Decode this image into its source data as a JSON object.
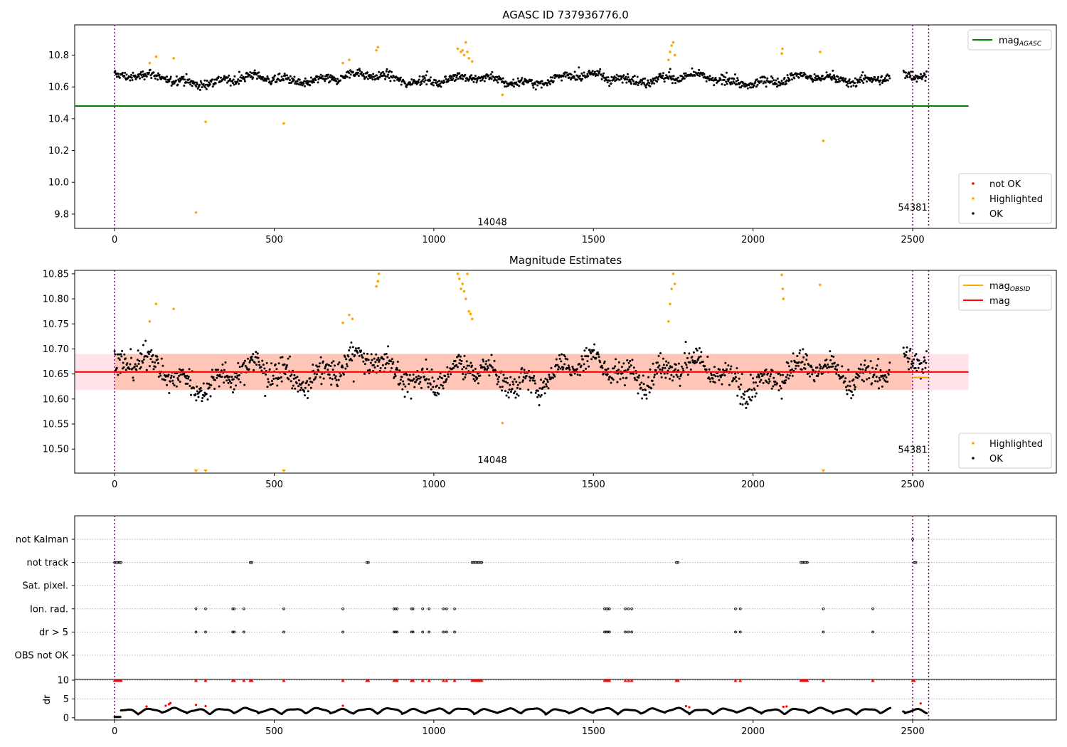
{
  "figure": {
    "title": "AGASC ID 737936776.0"
  },
  "chart_data": [
    {
      "type": "scatter",
      "title": "AGASC ID 737936776.0",
      "xlabel": "",
      "ylabel": "",
      "xlim": [
        -125,
        2950
      ],
      "ylim": [
        9.71,
        10.99
      ],
      "xticks": [
        0,
        500,
        1000,
        1500,
        2000,
        2500
      ],
      "yticks": [
        9.8,
        10.0,
        10.2,
        10.4,
        10.6,
        10.8
      ],
      "grid": false,
      "obs_lines": [
        0,
        2500,
        2550
      ],
      "obs_labels": [
        {
          "text": "14048",
          "x": 1250,
          "y": 9.74
        },
        {
          "text": "54381",
          "x": 2500,
          "y": 9.83
        }
      ],
      "hline": {
        "name": "mag_AGASC",
        "value": 10.48,
        "xmin": -125,
        "xmax": 2675,
        "color": "#008000"
      },
      "series": [
        {
          "name": "not OK",
          "color": "#ff0000",
          "values": []
        },
        {
          "name": "Highlighted",
          "color": "#ffa500",
          "points": [
            [
              110,
              10.75
            ],
            [
              130,
              10.79
            ],
            [
              185,
              10.78
            ],
            [
              255,
              9.81
            ],
            [
              285,
              10.38
            ],
            [
              530,
              10.37
            ],
            [
              715,
              10.75
            ],
            [
              735,
              10.77
            ],
            [
              820,
              10.83
            ],
            [
              825,
              10.85
            ],
            [
              1075,
              10.84
            ],
            [
              1085,
              10.82
            ],
            [
              1090,
              10.83
            ],
            [
              1095,
              10.8
            ],
            [
              1100,
              10.88
            ],
            [
              1105,
              10.82
            ],
            [
              1110,
              10.78
            ],
            [
              1120,
              10.76
            ],
            [
              1215,
              10.55
            ],
            [
              1735,
              10.77
            ],
            [
              1740,
              10.82
            ],
            [
              1745,
              10.86
            ],
            [
              1750,
              10.88
            ],
            [
              1755,
              10.8
            ],
            [
              2090,
              10.81
            ],
            [
              2092,
              10.84
            ],
            [
              2210,
              10.82
            ],
            [
              2220,
              10.26
            ]
          ]
        },
        {
          "name": "OK",
          "color": "#000000",
          "model": {
            "base": 10.65,
            "noise": 0.035
          }
        }
      ],
      "legends": [
        {
          "position": "upper right",
          "entries": [
            {
              "label": "mag",
              "sub": "AGASC",
              "kind": "line",
              "color": "#008000"
            }
          ]
        },
        {
          "position": "lower right",
          "entries": [
            {
              "label": "not OK",
              "kind": "dot",
              "color": "#ff0000"
            },
            {
              "label": "Highlighted",
              "kind": "dot",
              "color": "#ffa500"
            },
            {
              "label": "OK",
              "kind": "dot",
              "color": "#000000"
            }
          ]
        }
      ]
    },
    {
      "type": "scatter",
      "title": "Magnitude Estimates",
      "xlabel": "",
      "ylabel": "",
      "xlim": [
        -125,
        2950
      ],
      "ylim": [
        10.452,
        10.857
      ],
      "xticks": [
        0,
        500,
        1000,
        1500,
        2000,
        2500
      ],
      "yticks": [
        10.5,
        10.55,
        10.6,
        10.65,
        10.7,
        10.75,
        10.8,
        10.85
      ],
      "grid": false,
      "obs_lines": [
        0,
        2500,
        2550
      ],
      "obs_labels": [
        {
          "text": "14048",
          "x": 1250,
          "y": 10.475
        },
        {
          "text": "54381",
          "x": 2500,
          "y": 10.495
        }
      ],
      "bands": [
        {
          "color": "#ffc0cb",
          "opacity": 0.45,
          "y0": 10.618,
          "y1": 10.69,
          "xmin": -125,
          "xmax": 2675
        },
        {
          "color": "#ffa07a",
          "opacity": 0.45,
          "y0": 10.618,
          "y1": 10.69,
          "xmin": 0,
          "xmax": 2500
        }
      ],
      "mag_line": {
        "name": "mag",
        "value": 10.654,
        "color": "#ff0000"
      },
      "mag_obsid": [
        {
          "x0": 0,
          "x1": 2500,
          "value": 10.654
        },
        {
          "x0": 2500,
          "x1": 2550,
          "value": 10.643
        }
      ],
      "series": [
        {
          "name": "Highlighted",
          "color": "#ffa500",
          "points": [
            [
              110,
              10.755
            ],
            [
              130,
              10.79
            ],
            [
              185,
              10.78
            ],
            [
              715,
              10.752
            ],
            [
              735,
              10.768
            ],
            [
              745,
              10.76
            ],
            [
              820,
              10.825
            ],
            [
              825,
              10.835
            ],
            [
              828,
              10.85
            ],
            [
              1075,
              10.85
            ],
            [
              1080,
              10.84
            ],
            [
              1085,
              10.82
            ],
            [
              1090,
              10.83
            ],
            [
              1095,
              10.815
            ],
            [
              1100,
              10.8
            ],
            [
              1105,
              10.85
            ],
            [
              1110,
              10.775
            ],
            [
              1115,
              10.77
            ],
            [
              1120,
              10.76
            ],
            [
              1215,
              10.552
            ],
            [
              1735,
              10.755
            ],
            [
              1740,
              10.79
            ],
            [
              1745,
              10.82
            ],
            [
              1750,
              10.85
            ],
            [
              1755,
              10.83
            ],
            [
              2090,
              10.848
            ],
            [
              2093,
              10.82
            ],
            [
              2095,
              10.8
            ],
            [
              2210,
              10.828
            ]
          ]
        },
        {
          "name": "OK",
          "color": "#000000",
          "model": {
            "base": 10.653,
            "noise": 0.03
          }
        }
      ],
      "off_scale_markers": [
        255,
        285,
        530,
        2220
      ],
      "legends": [
        {
          "position": "upper right",
          "entries": [
            {
              "label": "mag",
              "sub": "OBSID",
              "kind": "line",
              "color": "#ffa500"
            },
            {
              "label": "mag",
              "kind": "line",
              "color": "#ff0000"
            }
          ]
        },
        {
          "position": "lower right",
          "entries": [
            {
              "label": "Highlighted",
              "kind": "dot",
              "color": "#ffa500"
            },
            {
              "label": "OK",
              "kind": "dot",
              "color": "#000000"
            }
          ]
        }
      ]
    },
    {
      "type": "scatter",
      "title": "",
      "xlabel": "",
      "ylabel": "",
      "xlim": [
        -125,
        2950
      ],
      "xticks": [
        0,
        500,
        1000,
        1500,
        2000,
        2500
      ],
      "categories": [
        "not Kalman",
        "not track",
        "Sat. pixel.",
        "Ion. rad.",
        "dr > 5",
        "OBS not OK"
      ],
      "flag_x": {
        "not Kalman": [
          2500
        ],
        "not track": [
          0,
          5,
          10,
          15,
          20,
          425,
          430,
          790,
          795,
          1120,
          1125,
          1130,
          1135,
          1140,
          1145,
          1150,
          1760,
          1765,
          2150,
          2155,
          2160,
          2165,
          2170,
          2505,
          2510
        ],
        "Sat. pixel.": [],
        "Ion. rad.": [
          255,
          285,
          370,
          375,
          405,
          530,
          715,
          875,
          880,
          885,
          930,
          935,
          965,
          985,
          1030,
          1040,
          1065,
          1535,
          1540,
          1545,
          1550,
          1600,
          1610,
          1620,
          1945,
          1960,
          2220,
          2375
        ],
        "dr > 5": [
          255,
          285,
          370,
          375,
          405,
          530,
          715,
          875,
          880,
          885,
          930,
          935,
          965,
          985,
          1030,
          1040,
          1065,
          1535,
          1540,
          1545,
          1550,
          1600,
          1610,
          1620,
          1945,
          1960,
          2220,
          2375
        ],
        "OBS not OK": []
      }
    },
    {
      "type": "scatter",
      "title": "",
      "xlabel": "",
      "ylabel": "dr",
      "xlim": [
        -125,
        2950
      ],
      "ylim": [
        -0.6,
        10.2
      ],
      "yticks": [
        0,
        5,
        10
      ],
      "xticks": [
        0,
        500,
        1000,
        1500,
        2000,
        2500
      ],
      "ok_color": "#000000",
      "clip_color": "#ff0000",
      "clipped_x": [
        0,
        5,
        10,
        15,
        20,
        255,
        285,
        370,
        375,
        405,
        425,
        430,
        530,
        715,
        790,
        795,
        875,
        880,
        885,
        930,
        935,
        965,
        985,
        1030,
        1040,
        1065,
        1120,
        1125,
        1130,
        1135,
        1140,
        1145,
        1150,
        1535,
        1540,
        1545,
        1550,
        1600,
        1610,
        1620,
        1760,
        1765,
        1945,
        1960,
        2150,
        2155,
        2160,
        2165,
        2170,
        2220,
        2375,
        2500,
        2505
      ],
      "red_points": [
        [
          100,
          3.0
        ],
        [
          160,
          3.2
        ],
        [
          170,
          3.6
        ],
        [
          175,
          3.9
        ],
        [
          255,
          3.4
        ],
        [
          285,
          3.1
        ],
        [
          715,
          3.2
        ],
        [
          1790,
          3.1
        ],
        [
          1800,
          2.8
        ],
        [
          2095,
          2.9
        ],
        [
          2105,
          3.0
        ],
        [
          2525,
          3.8
        ]
      ]
    }
  ]
}
